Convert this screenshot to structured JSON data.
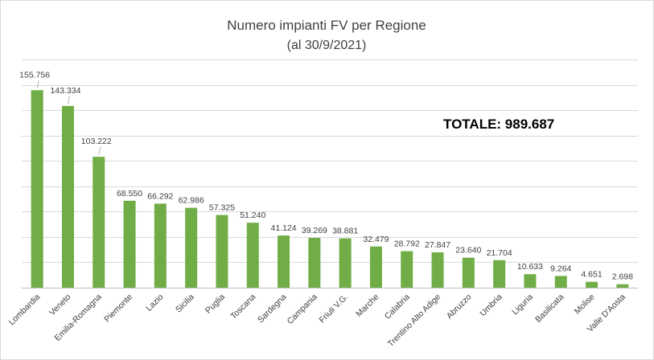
{
  "chart_data": {
    "type": "bar",
    "title": "Numero impianti FV per Regione",
    "subtitle": "(al 30/9/2021)",
    "annotation": "TOTALE:  989.687",
    "xlabel": "",
    "ylabel": "",
    "ylim": [
      0,
      180000
    ],
    "grid": true,
    "bar_color": "#70ad47",
    "categories": [
      "Lombardia",
      "Veneto",
      "Emilia-Romagna",
      "Piemonte",
      "Lazio",
      "Sicilia",
      "Puglia",
      "Toscana",
      "Sardegna",
      "Campania",
      "Friuli V.G.",
      "Marche",
      "Calabria",
      "Trentino Alto Adige",
      "Abruzzo",
      "Umbria",
      "Liguria",
      "Basilicata",
      "Molise",
      "Valle D'Aosta"
    ],
    "values": [
      155756,
      143334,
      103222,
      68550,
      66292,
      62986,
      57325,
      51240,
      41124,
      39269,
      38881,
      32479,
      28792,
      27847,
      23640,
      21704,
      10633,
      9264,
      4651,
      2698
    ],
    "data_labels": [
      "155.756",
      "143.334",
      "103.222",
      "68.550",
      "66.292",
      "62.986",
      "57.325",
      "51.240",
      "41.124",
      "39.269",
      "38.881",
      "32.479",
      "28.792",
      "27.847",
      "23.640",
      "21.704",
      "10.633",
      "9.264",
      "4.651",
      "2.698"
    ]
  }
}
